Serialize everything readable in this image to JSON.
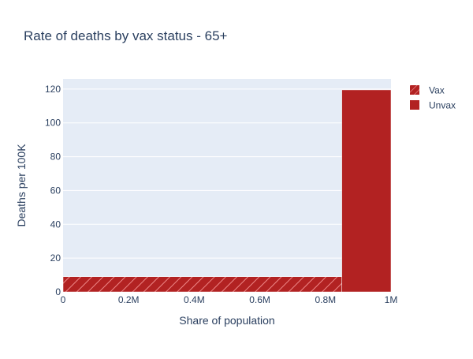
{
  "chart_data": {
    "type": "bar",
    "title": "Rate of deaths by vax status - 65+",
    "xlabel": "Share of population",
    "ylabel": "Deaths per 100K",
    "xlim": [
      0,
      1000000
    ],
    "ylim": [
      0,
      126
    ],
    "x_ticks": [
      {
        "value": 0,
        "label": "0"
      },
      {
        "value": 200000,
        "label": "0.2M"
      },
      {
        "value": 400000,
        "label": "0.4M"
      },
      {
        "value": 600000,
        "label": "0.6M"
      },
      {
        "value": 800000,
        "label": "0.8M"
      },
      {
        "value": 1000000,
        "label": "1M"
      }
    ],
    "y_ticks": [
      {
        "value": 0,
        "label": "0"
      },
      {
        "value": 20,
        "label": "20"
      },
      {
        "value": 40,
        "label": "40"
      },
      {
        "value": 60,
        "label": "60"
      },
      {
        "value": 80,
        "label": "80"
      },
      {
        "value": 100,
        "label": "100"
      },
      {
        "value": 120,
        "label": "120"
      }
    ],
    "grid": true,
    "legend_position": "top-right",
    "series": [
      {
        "name": "Vax",
        "x_start": 0,
        "x_end": 850000,
        "value": 9,
        "color": "#b22222",
        "pattern": "diagonal-hatch"
      },
      {
        "name": "Unvax",
        "x_start": 850000,
        "x_end": 1000000,
        "value": 119.5,
        "color": "#b22222",
        "pattern": "solid"
      }
    ]
  },
  "colors": {
    "plot_background": "#e5ecf6",
    "grid": "#ffffff",
    "text": "#2a3f5f"
  }
}
